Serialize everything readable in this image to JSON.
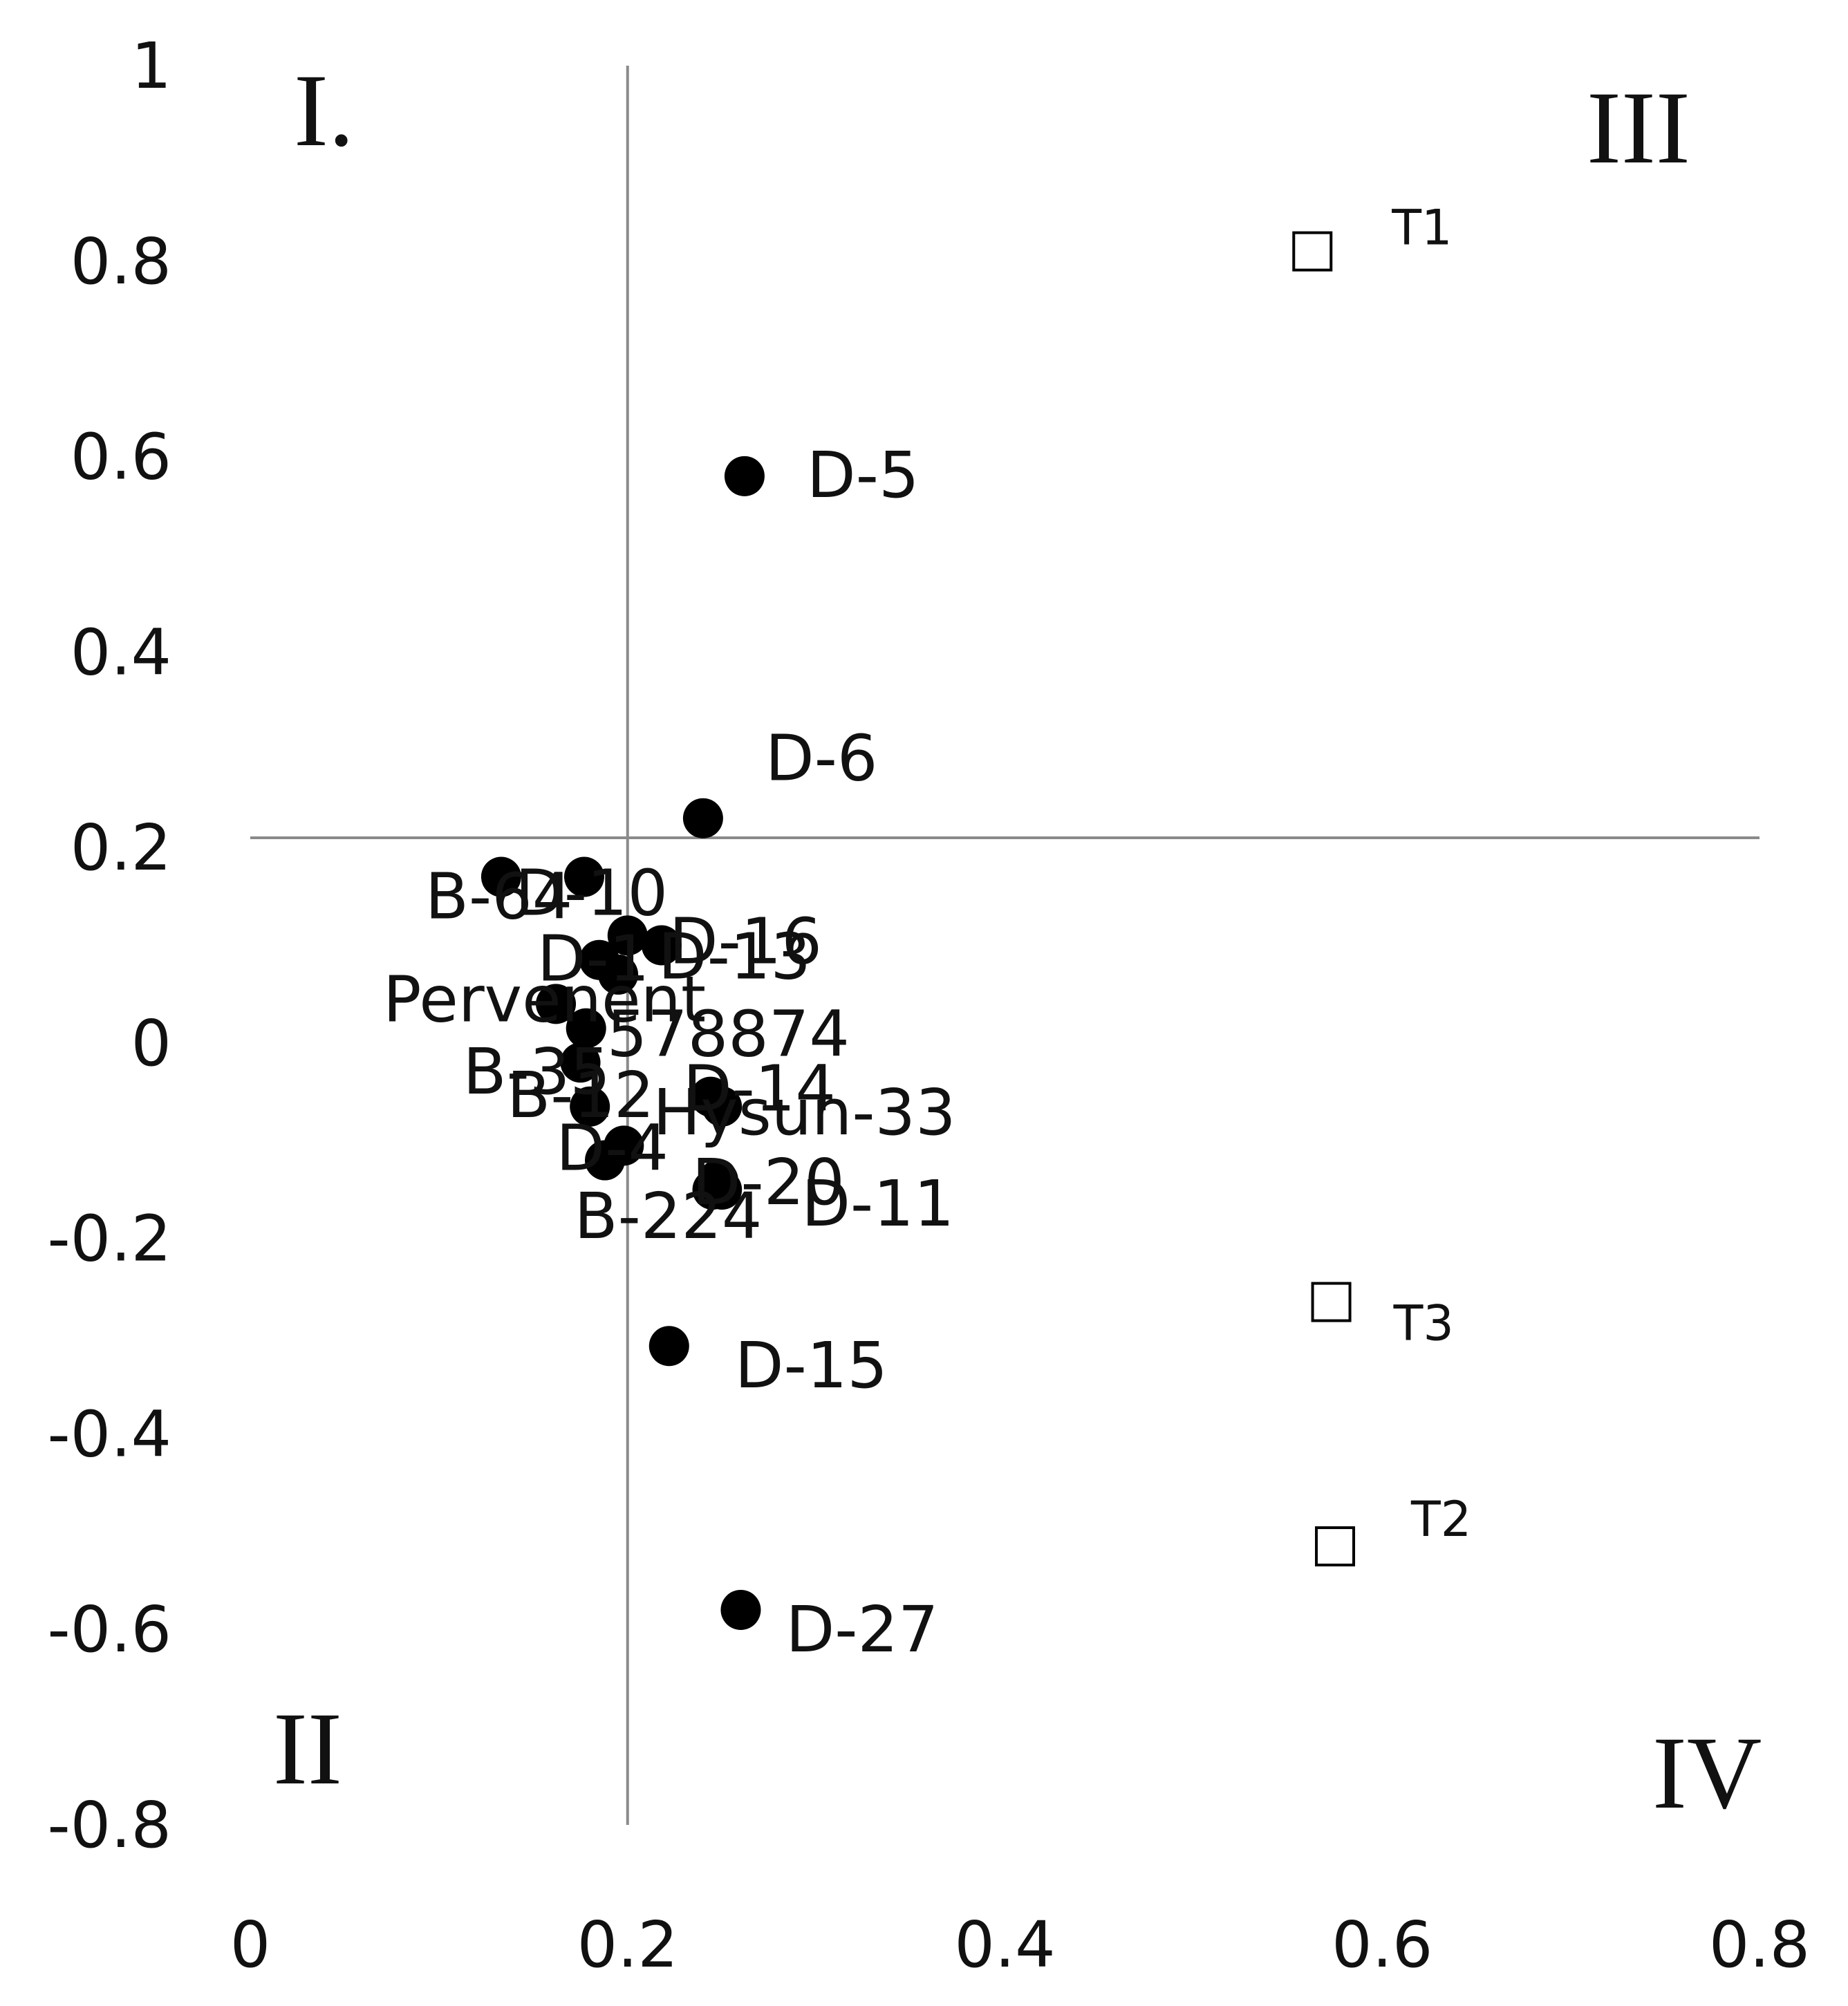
{
  "chart_data": {
    "type": "scatter",
    "title": "",
    "xlabel": "",
    "ylabel": "",
    "xlim": [
      0,
      0.8
    ],
    "ylim": [
      -0.8,
      1
    ],
    "x_ticks": [
      "0",
      "0.2",
      "0.4",
      "0.6",
      "0.8"
    ],
    "y_ticks": [
      "1",
      "0.8",
      "0.6",
      "0.4",
      "0.2",
      "0",
      "-0.2",
      "-0.4",
      "-0.6",
      "-0.8"
    ],
    "grid": false,
    "reference_lines": {
      "vertical_x": 0.2,
      "horizontal_y": 0.21
    },
    "quadrant_labels": [
      "I.",
      "II",
      "III",
      "IV"
    ],
    "series": [
      {
        "marker": "filled-circle",
        "color": "#000000",
        "points": [
          {
            "label": "D-5",
            "x": 0.262,
            "y": 0.58
          },
          {
            "label": "D-6",
            "x": 0.24,
            "y": 0.23
          },
          {
            "label": "B-64",
            "x": 0.133,
            "y": 0.17
          },
          {
            "label": "D-10",
            "x": 0.177,
            "y": 0.17
          },
          {
            "label": "D-16",
            "x": 0.2,
            "y": 0.11
          },
          {
            "label": "D-13",
            "x": 0.218,
            "y": 0.1
          },
          {
            "label": "D-1",
            "x": 0.185,
            "y": 0.085
          },
          {
            "label": "",
            "x": 0.195,
            "y": 0.07
          },
          {
            "label": "Pervenent",
            "x": 0.162,
            "y": 0.04
          },
          {
            "label": "578874",
            "x": 0.178,
            "y": 0.015
          },
          {
            "label": "B-35",
            "x": 0.175,
            "y": -0.02
          },
          {
            "label": "B-12",
            "x": 0.18,
            "y": -0.065
          },
          {
            "label": "D-14",
            "x": 0.244,
            "y": -0.055
          },
          {
            "label": "Hysun-33",
            "x": 0.25,
            "y": -0.065
          },
          {
            "label": "D-4",
            "x": 0.198,
            "y": -0.105
          },
          {
            "label": "",
            "x": 0.188,
            "y": -0.12
          },
          {
            "label": "D-20",
            "x": 0.248,
            "y": -0.14
          },
          {
            "label": "B-224",
            "x": 0.245,
            "y": -0.15
          },
          {
            "label": "D-11",
            "x": 0.25,
            "y": -0.15
          },
          {
            "label": "D-15",
            "x": 0.222,
            "y": -0.31
          },
          {
            "label": "D-27",
            "x": 0.26,
            "y": -0.58
          }
        ]
      },
      {
        "marker": "open-square",
        "color": "#000000",
        "points": [
          {
            "label": "T1",
            "x": 0.563,
            "y": 0.81
          },
          {
            "label": "T3",
            "x": 0.573,
            "y": -0.265
          },
          {
            "label": "T2",
            "x": 0.575,
            "y": -0.515
          }
        ]
      }
    ]
  }
}
